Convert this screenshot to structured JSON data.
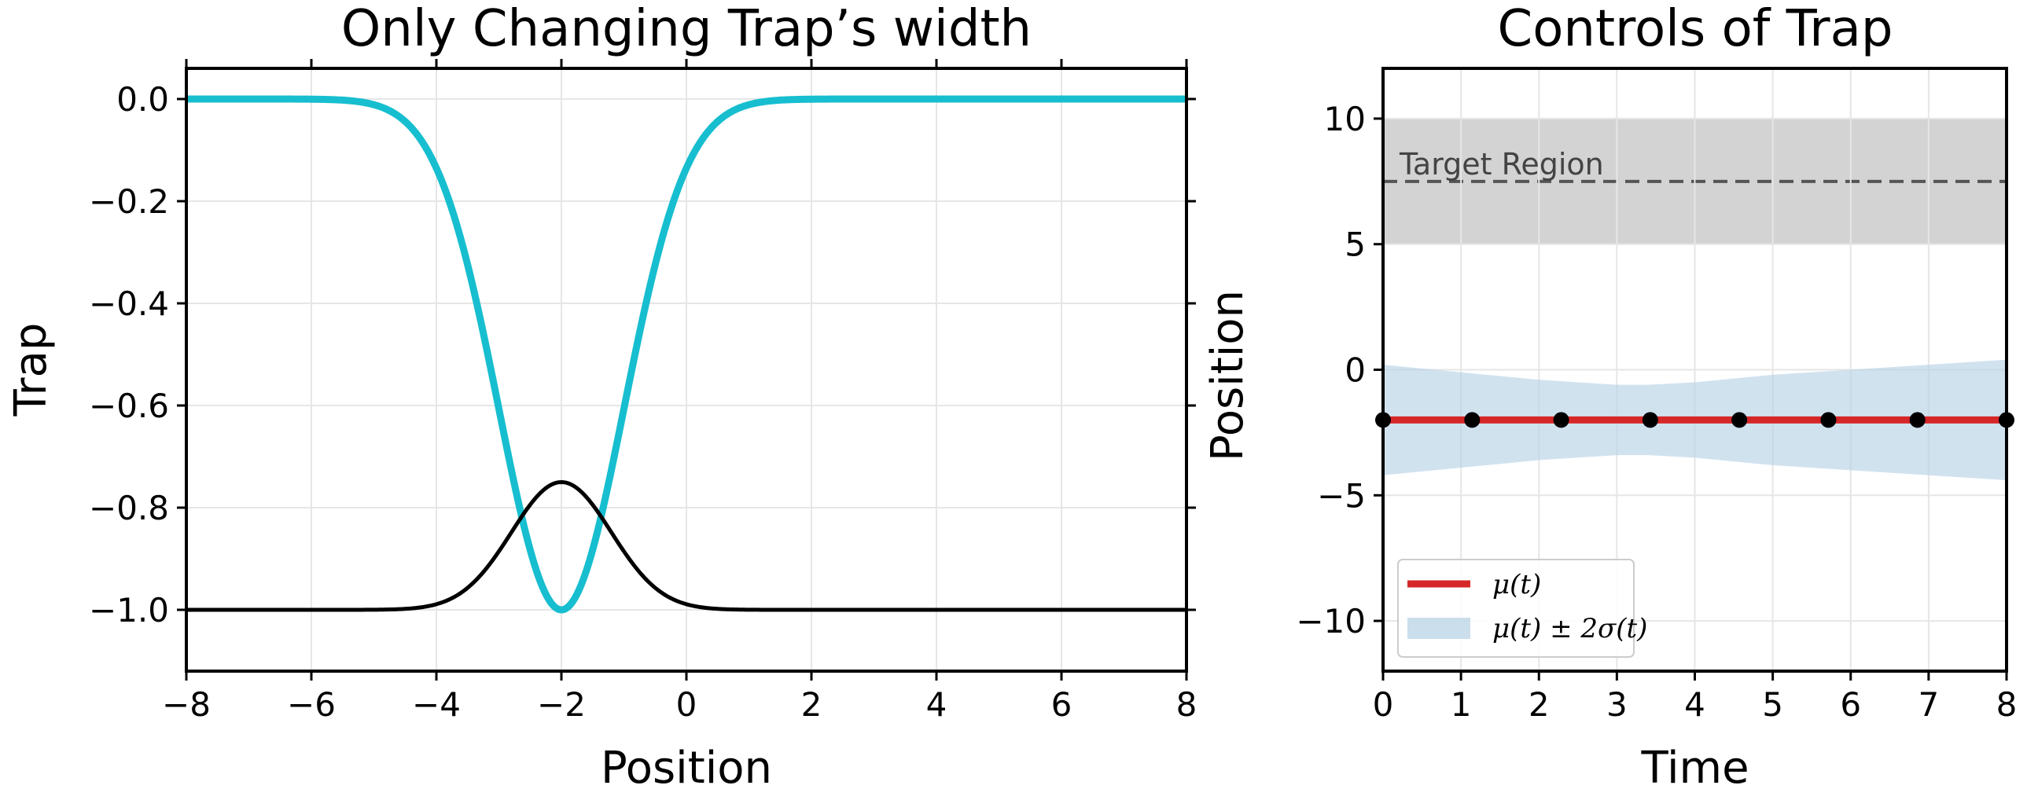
{
  "chart_data": [
    {
      "type": "line",
      "title": "Only Changing Trap’s width",
      "xlabel": "Position",
      "ylabel": "Trap",
      "xlim": [
        -8,
        8
      ],
      "ylim": [
        -1.12,
        0.06
      ],
      "xticks": [
        -8,
        -6,
        -4,
        -2,
        0,
        2,
        4,
        6,
        8
      ],
      "xtick_labels": [
        "−8",
        "−6",
        "−4",
        "−2",
        "0",
        "2",
        "4",
        "6",
        "8"
      ],
      "yticks": [
        0.0,
        -0.2,
        -0.4,
        -0.6,
        -0.8,
        -1.0
      ],
      "ytick_labels": [
        "0.0",
        "−0.2",
        "−0.4",
        "−0.6",
        "−0.8",
        "−1.0"
      ],
      "grid": true,
      "series": [
        {
          "color": "#17becf",
          "function": "-exp(-(x+2)^2/(2*1.0^2))",
          "x": [
            -8,
            -6,
            -5,
            -4,
            -3.5,
            -3,
            -2.5,
            -2,
            -1.5,
            -1,
            -0.5,
            0,
            1,
            2,
            8
          ],
          "values": [
            0.0,
            -0.0003,
            -0.011,
            -0.135,
            -0.325,
            -0.607,
            -0.882,
            -1.0,
            -0.882,
            -0.607,
            -0.325,
            -0.135,
            -0.011,
            -0.0003,
            0.0
          ]
        },
        {
          "color": "#000000",
          "function": "-1 + 0.25*exp(-(x+2)^2/(2*0.8^2))",
          "x": [
            -8,
            -5,
            -4,
            -3,
            -2.5,
            -2,
            -1.5,
            -1,
            0,
            1,
            8
          ],
          "values": [
            -1.0,
            -1.0,
            -0.989,
            -0.943,
            -0.853,
            -0.75,
            -0.853,
            -0.943,
            -0.989,
            -1.0,
            -1.0
          ]
        }
      ]
    },
    {
      "type": "line",
      "title": "Controls of Trap",
      "xlabel": "Time",
      "ylabel": "Position",
      "xlim": [
        0,
        8
      ],
      "ylim": [
        -12,
        12
      ],
      "xticks": [
        0,
        1,
        2,
        3,
        4,
        5,
        6,
        7,
        8
      ],
      "xtick_labels": [
        "0",
        "1",
        "2",
        "3",
        "4",
        "5",
        "6",
        "7",
        "8"
      ],
      "yticks": [
        10,
        5,
        0,
        -5,
        -10
      ],
      "ytick_labels": [
        "10",
        "5",
        "0",
        "−5",
        "−10"
      ],
      "grid": true,
      "target_region": {
        "ymin": 5,
        "ymax": 10,
        "center": 7.5,
        "label": "Target Region",
        "color": "#d3d3d3"
      },
      "band": {
        "name": "μ(t) ± 2σ(t)",
        "color": "#b9d3e6",
        "x": [
          0,
          1,
          2,
          3,
          3.4,
          4,
          5,
          6,
          7,
          8
        ],
        "upper": [
          0.2,
          -0.1,
          -0.4,
          -0.6,
          -0.6,
          -0.5,
          -0.2,
          0.0,
          0.2,
          0.4
        ],
        "lower": [
          -4.2,
          -3.9,
          -3.6,
          -3.4,
          -3.4,
          -3.5,
          -3.8,
          -4.0,
          -4.2,
          -4.4
        ]
      },
      "series": [
        {
          "name": "μ(t)",
          "color": "#d62728",
          "x": [
            0,
            8
          ],
          "values": [
            -2,
            -2
          ]
        }
      ],
      "markers": {
        "color": "#000000",
        "x": [
          0,
          1.1429,
          2.2857,
          3.4286,
          4.5714,
          5.7143,
          6.8571,
          8
        ],
        "values": [
          -2,
          -2,
          -2,
          -2,
          -2,
          -2,
          -2,
          -2
        ]
      },
      "legend": {
        "placement": "lower-left",
        "entries": [
          {
            "label": "μ(t)",
            "kind": "line",
            "color": "#d62728"
          },
          {
            "label": "μ(t) ± 2σ(t)",
            "kind": "patch",
            "color": "#b9d3e6"
          }
        ]
      }
    }
  ]
}
